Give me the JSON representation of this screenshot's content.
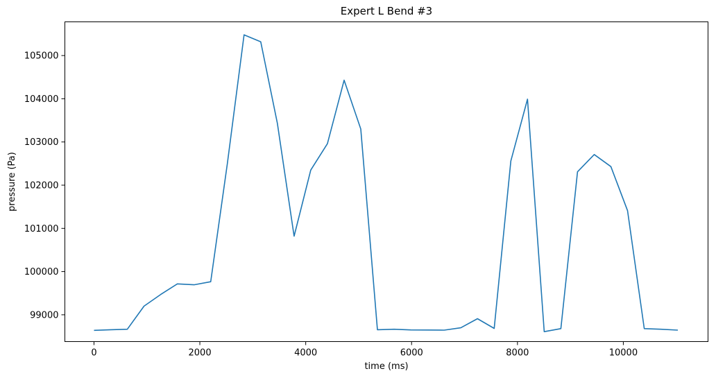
{
  "chart_data": {
    "type": "line",
    "title": "Expert L Bend #3",
    "xlabel": "time (ms)",
    "ylabel": "pressure (Pa)",
    "xlim": [
      -550,
      11600
    ],
    "ylim": [
      98380,
      105780
    ],
    "grid": false,
    "colors": {
      "line": "#1f77b4",
      "axes": "#000000",
      "background": "#ffffff"
    },
    "x_ticks": [
      0,
      2000,
      4000,
      6000,
      8000,
      10000
    ],
    "y_ticks": [
      99000,
      100000,
      101000,
      102000,
      103000,
      104000,
      105000
    ],
    "series": [
      {
        "x": [
          0,
          315,
          630,
          945,
          1260,
          1575,
          1890,
          2205,
          2520,
          2835,
          3150,
          3465,
          3780,
          4095,
          4410,
          4725,
          5040,
          5355,
          5670,
          5985,
          6300,
          6615,
          6930,
          7245,
          7560,
          7875,
          8190,
          8505,
          8820,
          9135,
          9450,
          9765,
          10080,
          10395,
          10710,
          11030
        ],
        "y": [
          98640,
          98655,
          98665,
          99200,
          99470,
          99715,
          99695,
          99765,
          102500,
          105480,
          105320,
          103430,
          100820,
          102350,
          102960,
          104430,
          103300,
          98655,
          98665,
          98650,
          98648,
          98645,
          98700,
          98910,
          98685,
          102560,
          103990,
          98610,
          98680,
          102310,
          102710,
          102430,
          101410,
          98680,
          98665,
          98645
        ]
      }
    ]
  }
}
